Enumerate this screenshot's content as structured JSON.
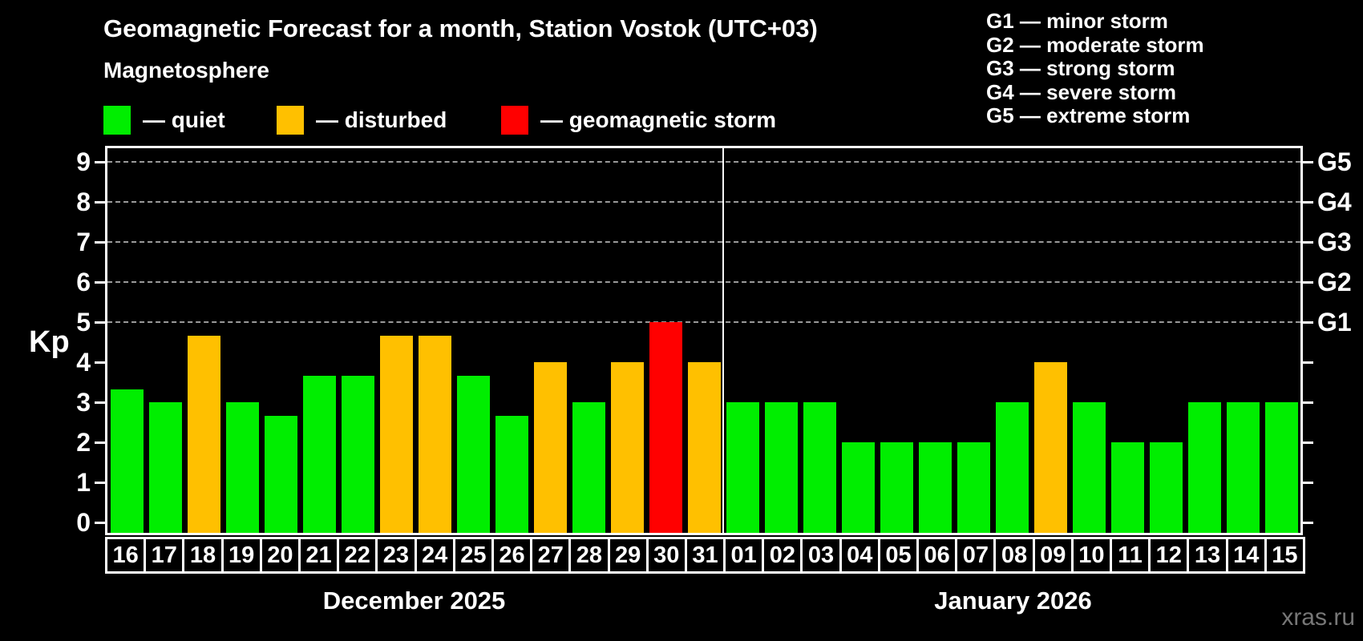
{
  "title": "Geomagnetic Forecast for a month, Station Vostok (UTC+03)",
  "subtitle": "Magnetosphere",
  "legend": [
    {
      "label": "— quiet",
      "color": "#00EE00"
    },
    {
      "label": "— disturbed",
      "color": "#FFC000"
    },
    {
      "label": "— geomagnetic storm",
      "color": "#FF0000"
    }
  ],
  "g_legend": [
    {
      "label": "G1 — minor storm"
    },
    {
      "label": "G2 — moderate storm"
    },
    {
      "label": "G3 — strong storm"
    },
    {
      "label": "G4 — severe storm"
    },
    {
      "label": "G5 — extreme storm"
    }
  ],
  "watermark": "xras.ru",
  "chart_data": {
    "type": "bar",
    "ylabel": "Kp",
    "ylim": [
      0,
      9
    ],
    "y_ticks": [
      0,
      1,
      2,
      3,
      4,
      5,
      6,
      7,
      8,
      9
    ],
    "gridlines_kp": [
      5,
      6,
      7,
      8,
      9
    ],
    "grid_style": "dashed",
    "right_axis": [
      {
        "label": "G1",
        "kp": 5
      },
      {
        "label": "G2",
        "kp": 6
      },
      {
        "label": "G3",
        "kp": 7
      },
      {
        "label": "G4",
        "kp": 8
      },
      {
        "label": "G5",
        "kp": 9
      }
    ],
    "status_colors": {
      "quiet": "#00EE00",
      "disturbed": "#FFC000",
      "storm": "#FF0000"
    },
    "months": [
      {
        "label": "December 2025",
        "points": [
          {
            "day": "16",
            "kp": 3.33,
            "status": "quiet"
          },
          {
            "day": "17",
            "kp": 3.0,
            "status": "quiet"
          },
          {
            "day": "18",
            "kp": 4.67,
            "status": "disturbed"
          },
          {
            "day": "19",
            "kp": 3.0,
            "status": "quiet"
          },
          {
            "day": "20",
            "kp": 2.67,
            "status": "quiet"
          },
          {
            "day": "21",
            "kp": 3.67,
            "status": "quiet"
          },
          {
            "day": "22",
            "kp": 3.67,
            "status": "quiet"
          },
          {
            "day": "23",
            "kp": 4.67,
            "status": "disturbed"
          },
          {
            "day": "24",
            "kp": 4.67,
            "status": "disturbed"
          },
          {
            "day": "25",
            "kp": 3.67,
            "status": "quiet"
          },
          {
            "day": "26",
            "kp": 2.67,
            "status": "quiet"
          },
          {
            "day": "27",
            "kp": 4.0,
            "status": "disturbed"
          },
          {
            "day": "28",
            "kp": 3.0,
            "status": "quiet"
          },
          {
            "day": "29",
            "kp": 4.0,
            "status": "disturbed"
          },
          {
            "day": "30",
            "kp": 5.0,
            "status": "storm"
          },
          {
            "day": "31",
            "kp": 4.0,
            "status": "disturbed"
          }
        ]
      },
      {
        "label": "January 2026",
        "points": [
          {
            "day": "01",
            "kp": 3.0,
            "status": "quiet"
          },
          {
            "day": "02",
            "kp": 3.0,
            "status": "quiet"
          },
          {
            "day": "03",
            "kp": 3.0,
            "status": "quiet"
          },
          {
            "day": "04",
            "kp": 2.0,
            "status": "quiet"
          },
          {
            "day": "05",
            "kp": 2.0,
            "status": "quiet"
          },
          {
            "day": "06",
            "kp": 2.0,
            "status": "quiet"
          },
          {
            "day": "07",
            "kp": 2.0,
            "status": "quiet"
          },
          {
            "day": "08",
            "kp": 3.0,
            "status": "quiet"
          },
          {
            "day": "09",
            "kp": 4.0,
            "status": "disturbed"
          },
          {
            "day": "10",
            "kp": 3.0,
            "status": "quiet"
          },
          {
            "day": "11",
            "kp": 2.0,
            "status": "quiet"
          },
          {
            "day": "12",
            "kp": 2.0,
            "status": "quiet"
          },
          {
            "day": "13",
            "kp": 3.0,
            "status": "quiet"
          },
          {
            "day": "14",
            "kp": 3.0,
            "status": "quiet"
          },
          {
            "day": "15",
            "kp": 3.0,
            "status": "quiet"
          }
        ]
      }
    ]
  }
}
